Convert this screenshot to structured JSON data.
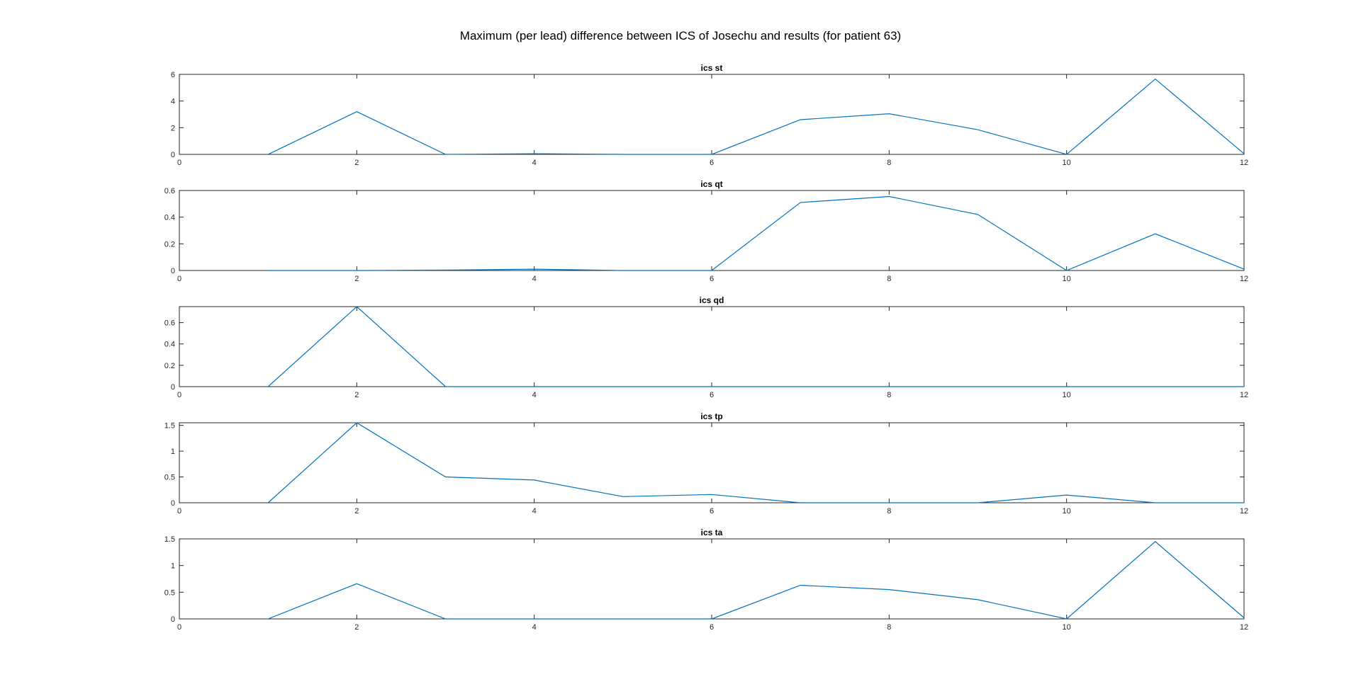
{
  "figure_title": "Maximum (per lead) difference between ICS of Josechu and results (for patient 63)",
  "chart_data": [
    {
      "type": "line",
      "title": "ics st",
      "xlim": [
        0,
        12
      ],
      "ylim": [
        0,
        6
      ],
      "xticks": [
        "0",
        "2",
        "4",
        "6",
        "8",
        "10",
        "12"
      ],
      "yticks": [
        "0",
        "2",
        "4",
        "6"
      ],
      "ytick_values": [
        0,
        2,
        4,
        6
      ],
      "x": [
        1,
        2,
        3,
        4,
        5,
        6,
        7,
        8,
        9,
        10,
        11,
        12
      ],
      "series": [
        {
          "values": [
            0,
            3.2,
            0,
            0.05,
            0,
            0,
            2.6,
            3.05,
            1.85,
            0,
            5.65,
            0.05
          ]
        }
      ],
      "color": "#0072BD"
    },
    {
      "type": "line",
      "title": "ics qt",
      "xlim": [
        0,
        12
      ],
      "ylim": [
        0,
        0.6
      ],
      "xticks": [
        "0",
        "2",
        "4",
        "6",
        "8",
        "10",
        "12"
      ],
      "yticks": [
        "0",
        "0.2",
        "0.4",
        "0.6"
      ],
      "ytick_values": [
        0,
        0.2,
        0.4,
        0.6
      ],
      "x": [
        1,
        2,
        3,
        4,
        5,
        6,
        7,
        8,
        9,
        10,
        11,
        12
      ],
      "series": [
        {
          "values": [
            0,
            0,
            0.003,
            0.01,
            0,
            0,
            0.51,
            0.555,
            0.42,
            0,
            0.275,
            0.01
          ]
        }
      ],
      "color": "#0072BD"
    },
    {
      "type": "line",
      "title": "ics qd",
      "xlim": [
        0,
        12
      ],
      "ylim": [
        0,
        0.75
      ],
      "xticks": [
        "0",
        "2",
        "4",
        "6",
        "8",
        "10",
        "12"
      ],
      "yticks": [
        "0",
        "0.2",
        "0.4",
        "0.6"
      ],
      "ytick_values": [
        0,
        0.2,
        0.4,
        0.6
      ],
      "x": [
        1,
        2,
        3,
        4,
        5,
        6,
        7,
        8,
        9,
        10,
        11,
        12
      ],
      "series": [
        {
          "values": [
            0,
            0.75,
            0,
            0,
            0,
            0,
            0,
            0,
            0,
            0,
            0,
            0
          ]
        }
      ],
      "color": "#0072BD"
    },
    {
      "type": "line",
      "title": "ics tp",
      "xlim": [
        0,
        12
      ],
      "ylim": [
        0,
        1.55
      ],
      "xticks": [
        "0",
        "2",
        "4",
        "6",
        "8",
        "10",
        "12"
      ],
      "yticks": [
        "0",
        "0.5",
        "1",
        "1.5"
      ],
      "ytick_values": [
        0,
        0.5,
        1,
        1.5
      ],
      "x": [
        1,
        2,
        3,
        4,
        5,
        6,
        7,
        8,
        9,
        10,
        11,
        12
      ],
      "series": [
        {
          "values": [
            0,
            1.55,
            0.5,
            0.44,
            0.12,
            0.16,
            0,
            0,
            0,
            0.15,
            0,
            0
          ]
        }
      ],
      "color": "#0072BD"
    },
    {
      "type": "line",
      "title": "ics ta",
      "xlim": [
        0,
        12
      ],
      "ylim": [
        0,
        1.5
      ],
      "xticks": [
        "0",
        "2",
        "4",
        "6",
        "8",
        "10",
        "12"
      ],
      "yticks": [
        "0",
        "0.5",
        "1",
        "1.5"
      ],
      "ytick_values": [
        0,
        0.5,
        1,
        1.5
      ],
      "x": [
        1,
        2,
        3,
        4,
        5,
        6,
        7,
        8,
        9,
        10,
        11,
        12
      ],
      "series": [
        {
          "values": [
            0,
            0.66,
            0,
            0,
            0,
            0,
            0.63,
            0.55,
            0.36,
            0,
            1.45,
            0.02
          ]
        }
      ],
      "color": "#0072BD"
    }
  ]
}
